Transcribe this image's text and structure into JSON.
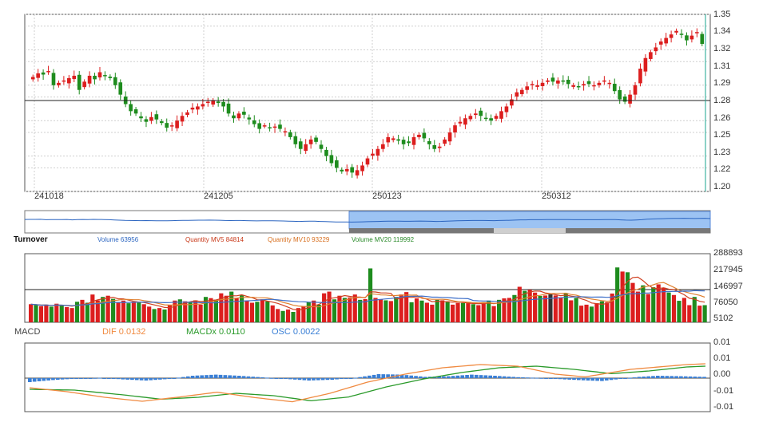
{
  "chart_data": [
    {
      "type": "candlestick",
      "y_ticks": [
        "1.35",
        "1.34",
        "1.32",
        "1.31",
        "1.29",
        "1.28",
        "1.26",
        "1.25",
        "1.23",
        "1.22",
        "1.20"
      ],
      "x_ticks": [
        "241018",
        "241205",
        "250123",
        "250312"
      ],
      "ylim": [
        1.2,
        1.35
      ],
      "reference_line": 1.277,
      "last_close": 1.325,
      "closes": [
        1.297,
        1.3,
        1.299,
        1.302,
        1.29,
        1.292,
        1.294,
        1.296,
        1.298,
        1.286,
        1.293,
        1.298,
        1.295,
        1.301,
        1.298,
        1.296,
        1.29,
        1.282,
        1.274,
        1.268,
        1.266,
        1.262,
        1.259,
        1.263,
        1.261,
        1.258,
        1.254,
        1.256,
        1.26,
        1.264,
        1.267,
        1.271,
        1.272,
        1.274,
        1.276,
        1.277,
        1.275,
        1.272,
        1.266,
        1.262,
        1.266,
        1.265,
        1.261,
        1.257,
        1.253,
        1.256,
        1.254,
        1.255,
        1.253,
        1.251,
        1.246,
        1.24,
        1.236,
        1.24,
        1.244,
        1.242,
        1.236,
        1.23,
        1.224,
        1.22,
        1.217,
        1.219,
        1.216,
        1.218,
        1.222,
        1.228,
        1.232,
        1.236,
        1.24,
        1.246,
        1.245,
        1.243,
        1.24,
        1.241,
        1.246,
        1.248,
        1.245,
        1.24,
        1.236,
        1.238,
        1.244,
        1.25,
        1.256,
        1.259,
        1.262,
        1.264,
        1.266,
        1.264,
        1.262,
        1.26,
        1.264,
        1.268,
        1.272,
        1.278,
        1.284,
        1.286,
        1.289,
        1.291,
        1.29,
        1.292,
        1.294,
        1.293,
        1.294,
        1.293,
        1.291,
        1.29,
        1.289,
        1.291,
        1.291,
        1.29,
        1.292,
        1.294,
        1.292,
        1.285,
        1.278,
        1.276,
        1.282,
        1.29,
        1.304,
        1.313,
        1.318,
        1.322,
        1.327,
        1.33,
        1.333,
        1.336,
        1.333,
        1.328,
        1.332,
        1.335,
        1.325
      ],
      "volumes": [
        80000,
        76000,
        72000,
        78000,
        70000,
        82000,
        74000,
        68000,
        64000,
        90000,
        98000,
        86000,
        120000,
        96000,
        110000,
        115000,
        102000,
        88000,
        95000,
        84000,
        90000,
        86000,
        80000,
        70000,
        60000,
        64000,
        58000,
        76000,
        95000,
        100000,
        92000,
        88000,
        96000,
        78000,
        110000,
        105000,
        98000,
        125000,
        115000,
        132000,
        104000,
        118000,
        95000,
        86000,
        90000,
        100000,
        92000,
        75000,
        60000,
        52000,
        58000,
        48000,
        64000,
        70000,
        88000,
        95000,
        78000,
        125000,
        132000,
        100000,
        115000,
        106000,
        108000,
        120000,
        98000,
        101000,
        228000,
        106000,
        101000,
        96000,
        93000,
        110000,
        120000,
        130000,
        88000,
        104000,
        95000,
        86000,
        78000,
        98000,
        96000,
        92000,
        78000,
        86000,
        85000,
        84000,
        80000,
        76000,
        88000,
        95000,
        72000,
        98000,
        104000,
        106000,
        118000,
        152000,
        135000,
        140000,
        128000,
        114000,
        116000,
        122000,
        116000,
        108000,
        126000,
        96000,
        106000,
        74000,
        78000,
        70000,
        84000,
        92000,
        88000,
        124000,
        232000,
        215000,
        212000,
        168000,
        132000,
        158000,
        122000,
        150000,
        162000,
        148000,
        128000,
        118000,
        94000,
        106000,
        76000,
        110000,
        74000,
        76000
      ],
      "osc_profile": [
        [
          0,
          -0.0025
        ],
        [
          5,
          -0.0012
        ],
        [
          10,
          -0.0003
        ],
        [
          15,
          0.0002
        ],
        [
          20,
          -0.0008
        ],
        [
          25,
          -0.0015
        ],
        [
          30,
          -0.0005
        ],
        [
          35,
          0.0015
        ],
        [
          40,
          0.0022
        ],
        [
          45,
          0.0015
        ],
        [
          50,
          0.0005
        ],
        [
          55,
          -0.0005
        ],
        [
          60,
          -0.0015
        ],
        [
          65,
          -0.001
        ],
        [
          70,
          0.0002
        ],
        [
          75,
          0.0025
        ],
        [
          80,
          0.0022
        ],
        [
          85,
          0.0008
        ],
        [
          90,
          0.0012
        ],
        [
          95,
          0.0022
        ],
        [
          100,
          0.0015
        ],
        [
          105,
          0.0006
        ],
        [
          110,
          0.0001
        ],
        [
          115,
          -0.0008
        ],
        [
          120,
          -0.0015
        ],
        [
          123,
          -0.0018
        ],
        [
          127,
          -0.0005
        ],
        [
          131,
          0.0008
        ],
        [
          135,
          0.0015
        ],
        [
          140,
          0.0012
        ],
        [
          145,
          0.0008
        ]
      ],
      "dif_profile": [
        [
          0,
          -0.006
        ],
        [
          10,
          -0.0085
        ],
        [
          20,
          -0.012
        ],
        [
          30,
          -0.0145
        ],
        [
          40,
          -0.0118
        ],
        [
          50,
          -0.0088
        ],
        [
          60,
          -0.0122
        ],
        [
          70,
          -0.0148
        ],
        [
          80,
          -0.0095
        ],
        [
          90,
          -0.0025
        ],
        [
          100,
          0.0025
        ],
        [
          110,
          0.0065
        ],
        [
          120,
          0.0085
        ],
        [
          130,
          0.0075
        ],
        [
          140,
          0.0025
        ],
        [
          148,
          0.0008
        ],
        [
          160,
          0.0055
        ],
        [
          175,
          0.0085
        ],
        [
          180,
          0.009
        ]
      ],
      "dea_profile": [
        [
          0,
          -0.007
        ],
        [
          12,
          -0.0075
        ],
        [
          25,
          -0.0105
        ],
        [
          35,
          -0.0132
        ],
        [
          45,
          -0.012
        ],
        [
          55,
          -0.0095
        ],
        [
          65,
          -0.011
        ],
        [
          75,
          -0.0142
        ],
        [
          85,
          -0.0118
        ],
        [
          95,
          -0.0055
        ],
        [
          105,
          -0.0005
        ],
        [
          115,
          0.0035
        ],
        [
          125,
          0.0065
        ],
        [
          135,
          0.0075
        ],
        [
          145,
          0.0055
        ],
        [
          155,
          0.0028
        ],
        [
          165,
          0.0045
        ],
        [
          175,
          0.007
        ],
        [
          180,
          0.0075
        ]
      ]
    }
  ],
  "turnover": {
    "title": "Turnover",
    "volume_label": "Volume 63956",
    "mv5_label": "Quantity MV5 84814",
    "mv10_label": "Quantity MV10 93229",
    "mv20_label": "Volume MV20 119992"
  },
  "volume_axis": [
    "288893",
    "217945",
    "146997",
    "76050",
    "5102"
  ],
  "macd": {
    "title": "MACD",
    "dif_label": "DIF 0.0132",
    "dea_label": "MACDx 0.0110",
    "osc_label": "OSC 0.0022",
    "axis": [
      "0.01",
      "0.01",
      "0.00",
      "-0.01",
      "-0.01"
    ]
  },
  "colors": {
    "up": "#dc1e1e",
    "down": "#1e8c1e",
    "volume_line": "#3c6ec8",
    "mv5": "#d04020",
    "mv10": "#e08030",
    "mv20": "#2c9a2c",
    "dif": "#f08a40",
    "dea": "#2a9a2a",
    "osc": "#3a7fd5",
    "navigator_fill": "#9cc3f3",
    "navigator_line": "#2a64c0"
  }
}
